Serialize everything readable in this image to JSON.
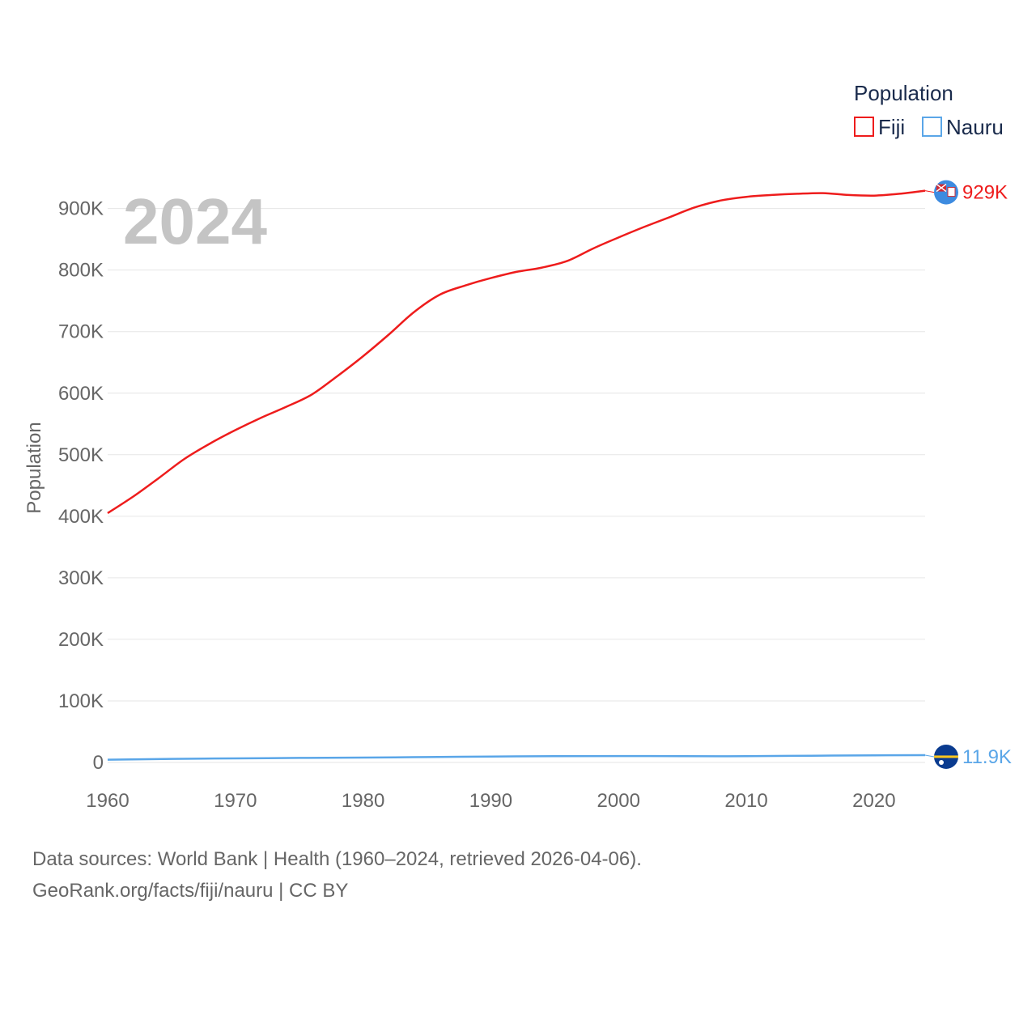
{
  "chart_data": {
    "type": "line",
    "ylabel": "Population",
    "xlabel": "",
    "year_label": "2024",
    "xlim": [
      1960,
      2024
    ],
    "ylim": [
      0,
      960000
    ],
    "x_ticks": [
      1960,
      1970,
      1980,
      1990,
      2000,
      2010,
      2020
    ],
    "x_tick_labels": [
      "1960",
      "1970",
      "1980",
      "1990",
      "2000",
      "2010",
      "2020"
    ],
    "y_ticks": [
      0,
      100000,
      200000,
      300000,
      400000,
      500000,
      600000,
      700000,
      800000,
      900000
    ],
    "y_tick_labels": [
      "0",
      "100K",
      "200K",
      "300K",
      "400K",
      "500K",
      "600K",
      "700K",
      "800K",
      "900K"
    ],
    "legend": {
      "title": "Population",
      "position": "top-right"
    },
    "series": [
      {
        "name": "Fiji",
        "color": "#ee1c1c",
        "end_label": "929K",
        "x": [
          1960,
          1962,
          1964,
          1966,
          1968,
          1970,
          1972,
          1974,
          1976,
          1978,
          1980,
          1982,
          1984,
          1986,
          1988,
          1990,
          1992,
          1994,
          1996,
          1998,
          2000,
          2002,
          2004,
          2006,
          2008,
          2010,
          2012,
          2014,
          2016,
          2018,
          2020,
          2022,
          2024
        ],
        "values": [
          405000,
          432000,
          462000,
          493000,
          518000,
          540000,
          560000,
          578000,
          598000,
          628000,
          660000,
          695000,
          732000,
          760000,
          775000,
          787000,
          797000,
          804000,
          815000,
          835000,
          853000,
          870000,
          886000,
          902000,
          913000,
          919000,
          922000,
          924000,
          925000,
          922000,
          921000,
          924000,
          929000
        ]
      },
      {
        "name": "Nauru",
        "color": "#5aa6e8",
        "end_label": "11.9K",
        "x": [
          1960,
          1965,
          1970,
          1975,
          1980,
          1985,
          1990,
          1995,
          2000,
          2005,
          2010,
          2015,
          2020,
          2024
        ],
        "values": [
          4500,
          5800,
          6600,
          7300,
          7900,
          8700,
          9600,
          10200,
          10400,
          10200,
          10100,
          10900,
          11500,
          11900
        ]
      }
    ]
  },
  "footer": {
    "line1": "Data sources: World Bank | Health (1960–2024, retrieved 2026-04-06).",
    "line2": "GeoRank.org/facts/fiji/nauru | CC BY"
  }
}
